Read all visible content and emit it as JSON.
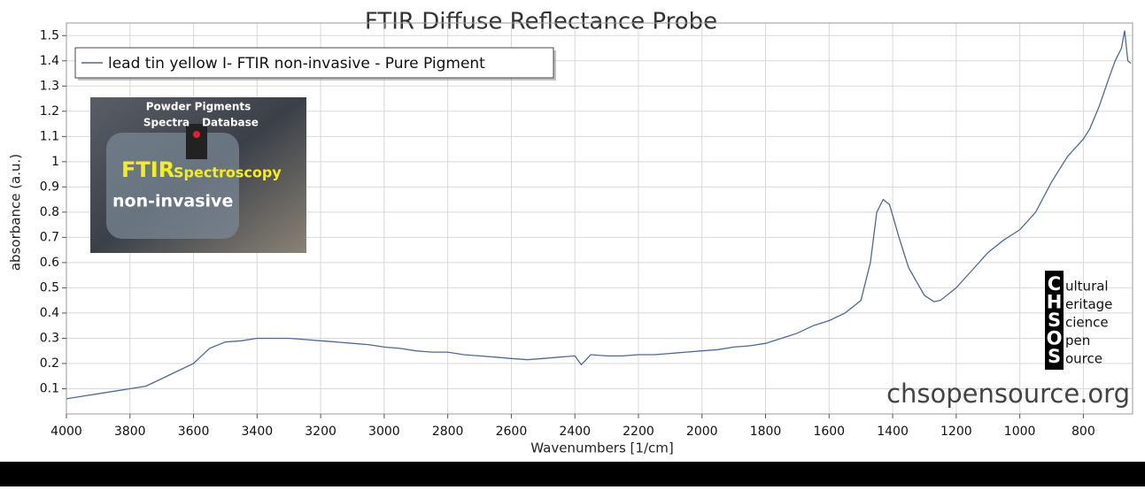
{
  "chart_data": {
    "type": "line",
    "title": "FTIR Diffuse Reflectance Probe",
    "x_label": "Wavenumbers [1/cm]",
    "y_label": "absorbance (a.u.)",
    "xlim": [
      4000,
      645
    ],
    "ylim": [
      0,
      1.55
    ],
    "xticks": [
      4000,
      3800,
      3600,
      3400,
      3200,
      3000,
      2800,
      2600,
      2400,
      2200,
      2000,
      1800,
      1600,
      1400,
      1200,
      1000,
      800
    ],
    "yticks": [
      0.1,
      0.2,
      0.3,
      0.4,
      0.5,
      0.6,
      0.7,
      0.8,
      0.9,
      1,
      1.1,
      1.2,
      1.3,
      1.4,
      1.5
    ],
    "grid": true,
    "legend": "top-left",
    "series": [
      {
        "name": "lead tin yellow I- FTIR non-invasive - Pure Pigment",
        "color": "#4d6a94",
        "x": [
          4000,
          3950,
          3900,
          3850,
          3800,
          3750,
          3700,
          3650,
          3600,
          3550,
          3500,
          3450,
          3400,
          3350,
          3300,
          3250,
          3200,
          3150,
          3100,
          3050,
          3000,
          2950,
          2900,
          2850,
          2800,
          2750,
          2700,
          2650,
          2600,
          2550,
          2500,
          2450,
          2400,
          2380,
          2350,
          2300,
          2250,
          2200,
          2150,
          2100,
          2050,
          2000,
          1950,
          1900,
          1850,
          1800,
          1750,
          1700,
          1650,
          1600,
          1550,
          1500,
          1470,
          1450,
          1430,
          1410,
          1380,
          1350,
          1300,
          1270,
          1250,
          1200,
          1150,
          1100,
          1050,
          1000,
          950,
          900,
          850,
          800,
          780,
          750,
          720,
          700,
          680,
          670,
          660,
          650
        ],
        "values": [
          0.06,
          0.07,
          0.08,
          0.09,
          0.1,
          0.11,
          0.14,
          0.17,
          0.2,
          0.26,
          0.285,
          0.29,
          0.3,
          0.3,
          0.3,
          0.295,
          0.29,
          0.285,
          0.28,
          0.275,
          0.265,
          0.26,
          0.25,
          0.245,
          0.245,
          0.235,
          0.23,
          0.225,
          0.22,
          0.215,
          0.22,
          0.225,
          0.23,
          0.195,
          0.235,
          0.23,
          0.23,
          0.235,
          0.235,
          0.24,
          0.245,
          0.25,
          0.255,
          0.265,
          0.27,
          0.28,
          0.3,
          0.32,
          0.35,
          0.37,
          0.4,
          0.45,
          0.6,
          0.8,
          0.85,
          0.83,
          0.7,
          0.58,
          0.47,
          0.445,
          0.45,
          0.5,
          0.57,
          0.64,
          0.69,
          0.73,
          0.8,
          0.92,
          1.02,
          1.09,
          1.13,
          1.22,
          1.33,
          1.4,
          1.45,
          1.52,
          1.4,
          1.39
        ]
      }
    ],
    "inset": {
      "line1": "Powder Pigments",
      "line2a": "Spectra",
      "line2b": "Database",
      "big": "FTIR",
      "big2": "Spectroscopy",
      "sub": "non-invasive"
    },
    "logo": {
      "letters": [
        "C",
        "H",
        "S",
        "O",
        "S"
      ],
      "words": [
        "ultural",
        "eritage",
        "cience",
        "pen",
        "ource"
      ]
    },
    "website": "chsopensource.org"
  }
}
